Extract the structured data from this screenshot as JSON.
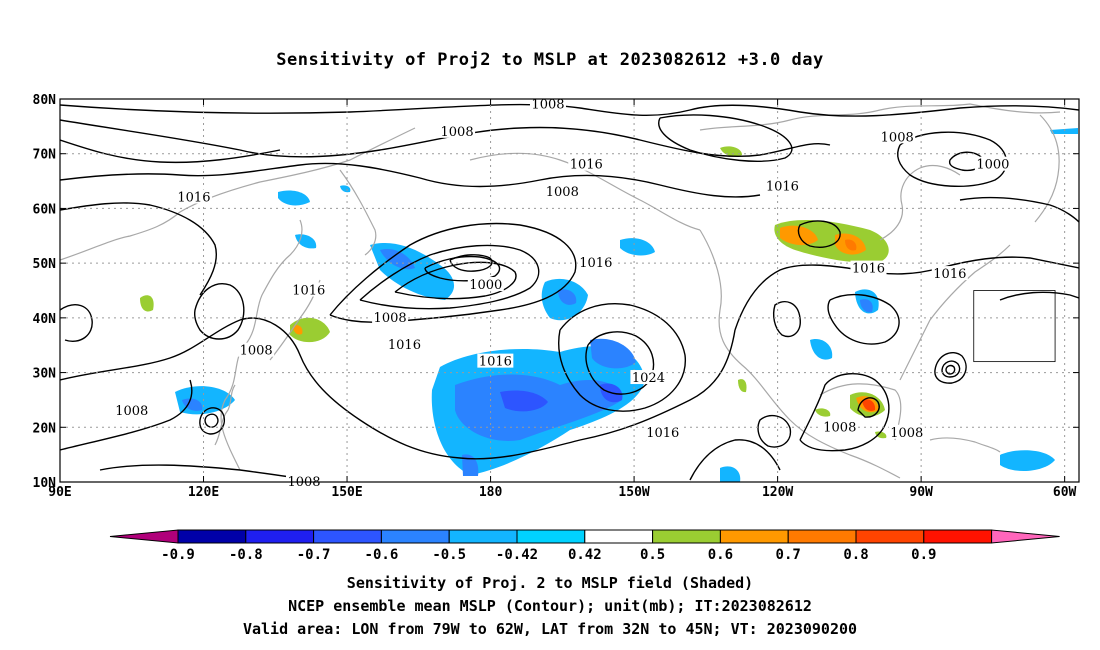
{
  "chart_data": {
    "type": "contour-map",
    "title": "Sensitivity of Proj2 to MSLP at 2023082612 +3.0 day",
    "x_ticks": [
      "90E",
      "120E",
      "150E",
      "180",
      "150W",
      "120W",
      "90W",
      "60W"
    ],
    "x_tick_values": [
      90,
      120,
      150,
      180,
      210,
      240,
      270,
      300
    ],
    "y_ticks": [
      "10N",
      "20N",
      "30N",
      "40N",
      "50N",
      "60N",
      "70N",
      "80N"
    ],
    "y_tick_values": [
      10,
      20,
      30,
      40,
      50,
      60,
      70,
      80
    ],
    "xlim": [
      90,
      303
    ],
    "ylim": [
      10,
      80
    ],
    "grid": true,
    "colorbar": {
      "labels": [
        "-0.9",
        "-0.8",
        "-0.7",
        "-0.6",
        "-0.5",
        "-0.42",
        "0.42",
        "0.5",
        "0.6",
        "0.7",
        "0.8",
        "0.9"
      ],
      "colors": [
        "#b0007a",
        "#0000a8",
        "#1f1ff0",
        "#2d55ff",
        "#2b83ff",
        "#13b5ff",
        "#00d2ff",
        "#ffffff",
        "#9acd32",
        "#ff9900",
        "#ff7a00",
        "#ff4400",
        "#ff1200",
        "#ff66bb"
      ]
    },
    "contour_labels": [
      {
        "text": "1008",
        "lon": 192,
        "lat": 79
      },
      {
        "text": "1008",
        "lon": 173,
        "lat": 74
      },
      {
        "text": "1008",
        "lon": 265,
        "lat": 73
      },
      {
        "text": "1016",
        "lon": 200,
        "lat": 68
      },
      {
        "text": "1016",
        "lon": 241,
        "lat": 64
      },
      {
        "text": "1000",
        "lon": 285,
        "lat": 68
      },
      {
        "text": "1008",
        "lon": 195,
        "lat": 63
      },
      {
        "text": "1016",
        "lon": 118,
        "lat": 62
      },
      {
        "text": "1016",
        "lon": 276,
        "lat": 48
      },
      {
        "text": "1000",
        "lon": 179,
        "lat": 46
      },
      {
        "text": "1016",
        "lon": 202,
        "lat": 50
      },
      {
        "text": "1016",
        "lon": 259,
        "lat": 49
      },
      {
        "text": "1016",
        "lon": 142,
        "lat": 45
      },
      {
        "text": "1008",
        "lon": 159,
        "lat": 40
      },
      {
        "text": "1016",
        "lon": 162,
        "lat": 35
      },
      {
        "text": "1008",
        "lon": 131,
        "lat": 34
      },
      {
        "text": "1016",
        "lon": 181,
        "lat": 32
      },
      {
        "text": "1024",
        "lon": 213,
        "lat": 29
      },
      {
        "text": "1008",
        "lon": 105,
        "lat": 23
      },
      {
        "text": "1008",
        "lon": 253,
        "lat": 20
      },
      {
        "text": "1008",
        "lon": 267,
        "lat": 19
      },
      {
        "text": "1016",
        "lon": 216,
        "lat": 19
      },
      {
        "text": "1008",
        "lon": 141,
        "lat": 10
      }
    ],
    "valid_box": {
      "lon": [
        281,
        298
      ],
      "lat": [
        32,
        45
      ]
    }
  },
  "captions": {
    "line1": "Sensitivity of Proj. 2 to MSLP field (Shaded)",
    "line2": "NCEP ensemble mean MSLP (Contour); unit(mb); IT:2023082612",
    "line3": "Valid area: LON from 79W to 62W, LAT from 32N to 45N; VT: 2023090200"
  }
}
